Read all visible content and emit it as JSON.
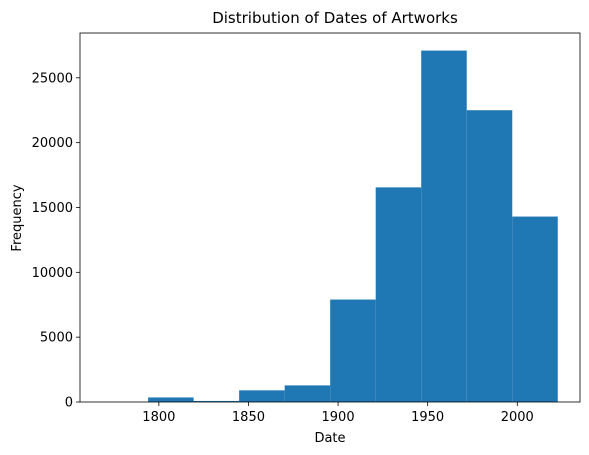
{
  "chart_data": {
    "type": "bar",
    "title": "Distribution of Dates of Artworks",
    "xlabel": "Date",
    "ylabel": "Frequency",
    "bins": [
      {
        "start": 1768.6,
        "end": 1794.0,
        "value": 0
      },
      {
        "start": 1794.0,
        "end": 1819.4,
        "value": 350
      },
      {
        "start": 1819.4,
        "end": 1844.8,
        "value": 80
      },
      {
        "start": 1844.8,
        "end": 1870.2,
        "value": 900
      },
      {
        "start": 1870.2,
        "end": 1895.6,
        "value": 1280
      },
      {
        "start": 1895.6,
        "end": 1921.0,
        "value": 7900
      },
      {
        "start": 1921.0,
        "end": 1946.4,
        "value": 16550
      },
      {
        "start": 1946.4,
        "end": 1971.8,
        "value": 27100
      },
      {
        "start": 1971.8,
        "end": 1997.2,
        "value": 22500
      },
      {
        "start": 1997.2,
        "end": 2022.6,
        "value": 14300
      }
    ],
    "xlim": [
      1756,
      2035
    ],
    "ylim": [
      0,
      28455
    ],
    "xticks": [
      1800,
      1850,
      1900,
      1950,
      2000
    ],
    "yticks": [
      0,
      5000,
      10000,
      15000,
      20000,
      25000
    ],
    "grid": false,
    "legend": "none",
    "bar_color": "#1f77b4"
  }
}
